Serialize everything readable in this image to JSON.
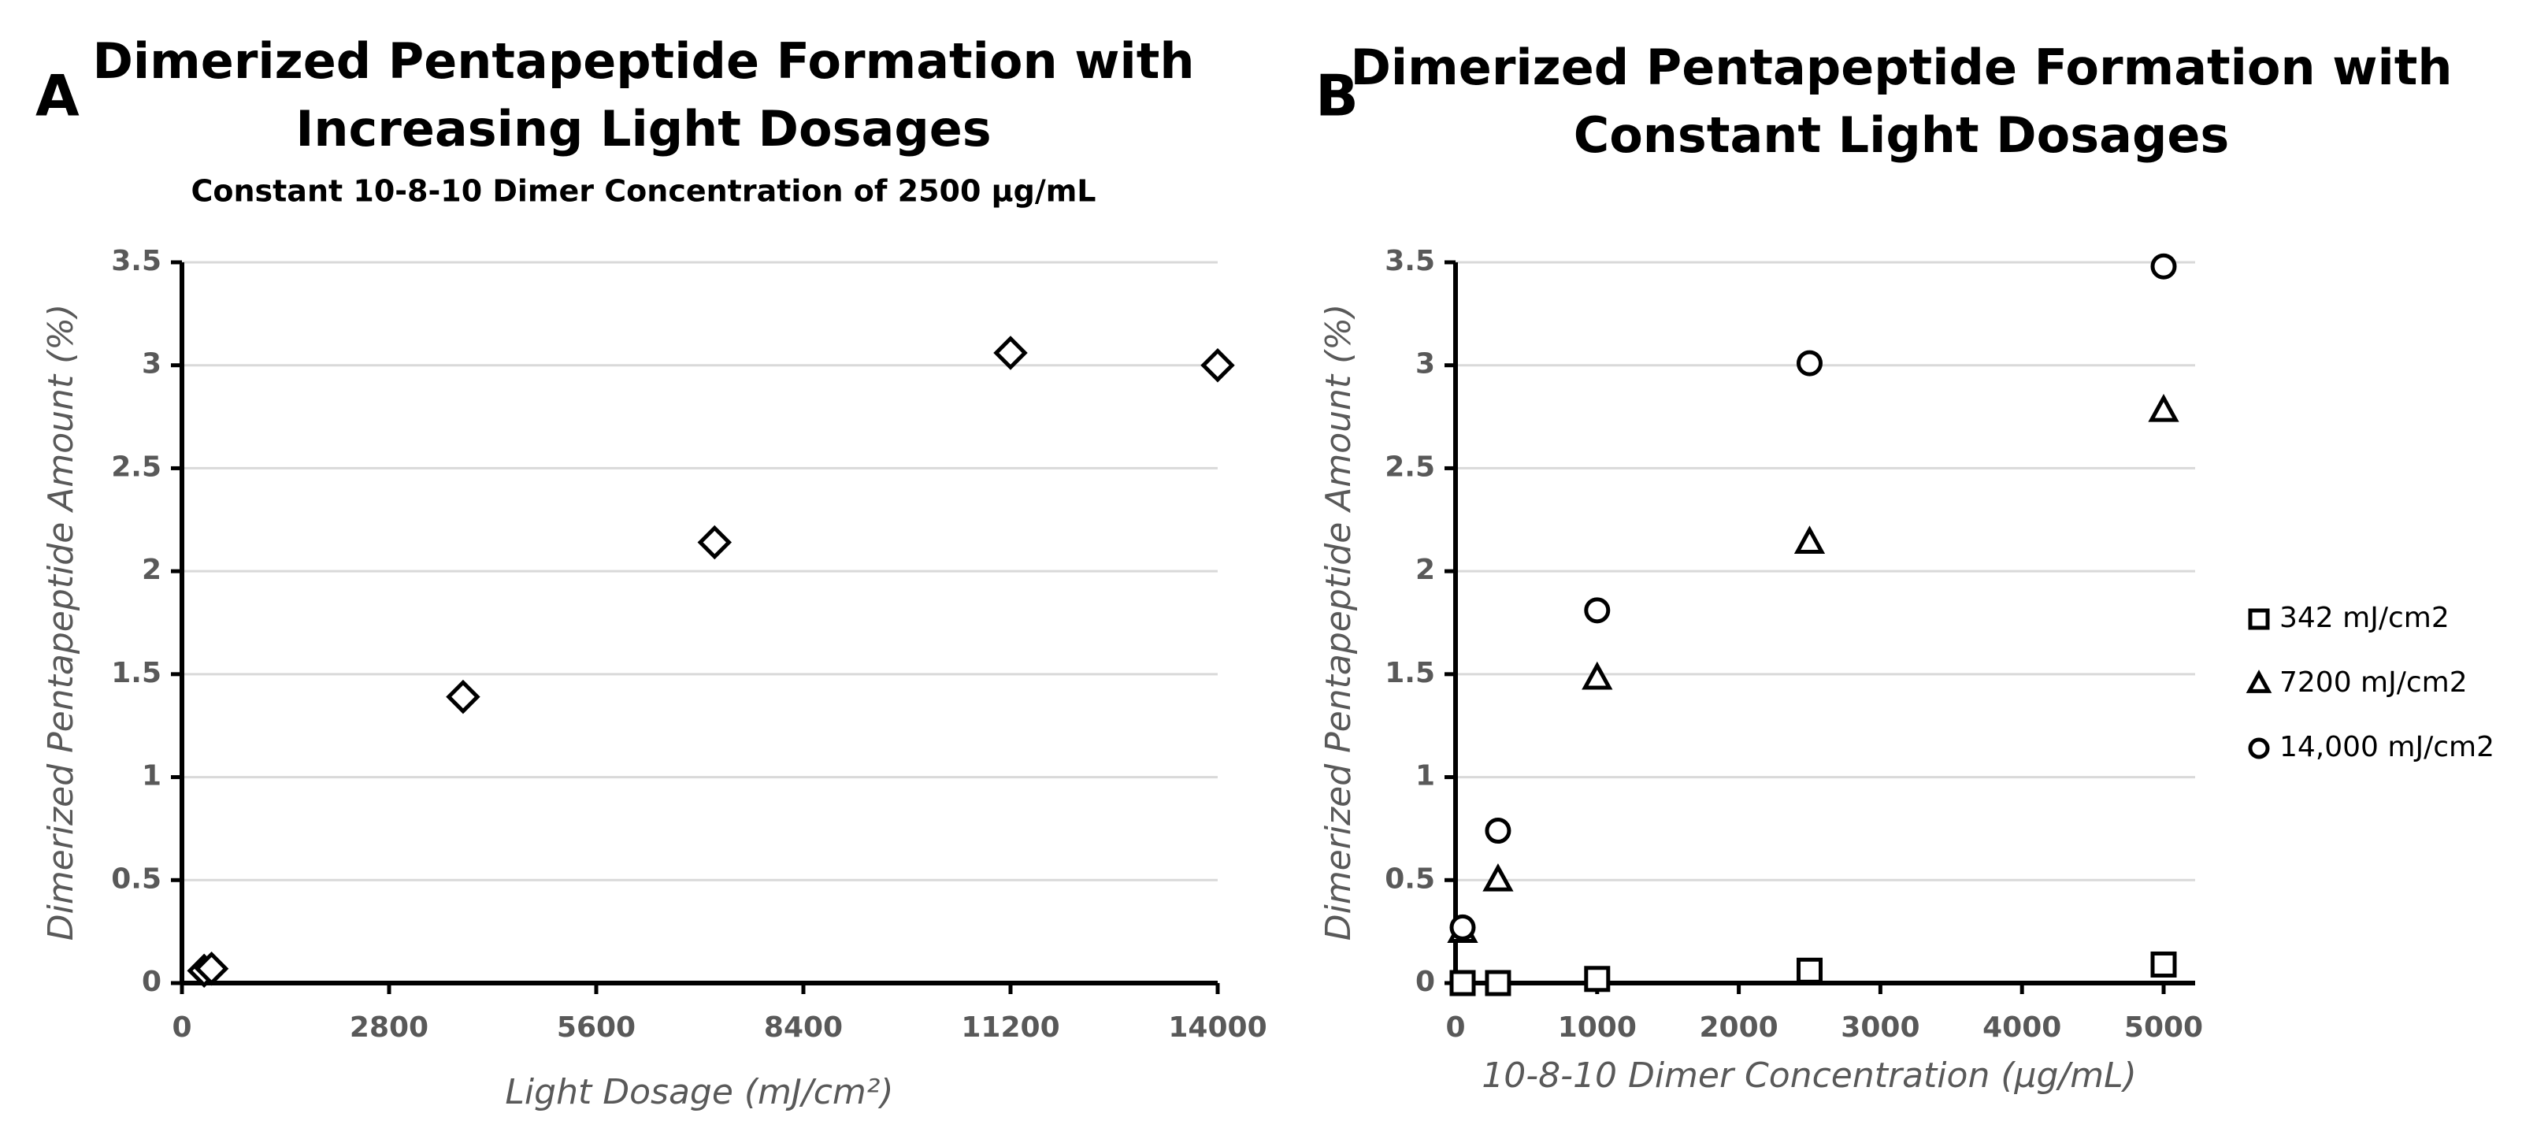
{
  "chart_data": [
    {
      "type": "scatter",
      "panel": "A",
      "title": [
        "Dimerized Pentapeptide Formation with",
        "Increasing Light Dosages"
      ],
      "subtitle": "Constant 10-8-10 Dimer Concentration of 2500 μg/mL",
      "x_label": "Light Dosage (mJ/cm²)",
      "y_label": "Dimerized Pentapeptide Amount (%)",
      "x": [
        300,
        400,
        3800,
        7200,
        11200,
        14000
      ],
      "values": [
        0.06,
        0.07,
        1.39,
        2.14,
        3.06,
        3.0
      ],
      "marker": "diamond",
      "color": "#000000",
      "xlim": [
        0,
        14000
      ],
      "xticks": [
        0,
        2800,
        5600,
        8400,
        11200,
        14000
      ],
      "ylim": [
        0,
        3.5
      ],
      "yticks": [
        0,
        0.5,
        1,
        1.5,
        2,
        2.5,
        3,
        3.5
      ],
      "grid": true
    },
    {
      "type": "scatter",
      "panel": "B",
      "title": [
        "Dimerized Pentapeptide Formation with",
        "Constant Light Dosages"
      ],
      "x_label": "10-8-10 Dimer Concentration (μg/mL)",
      "y_label": "Dimerized Pentapeptide Amount (%)",
      "x": [
        50,
        300,
        1000,
        2500,
        5000
      ],
      "series": [
        {
          "name": "342 mJ/cm2",
          "marker": "square",
          "color": "#000000",
          "values": [
            0,
            0,
            0.02,
            0.06,
            0.09
          ]
        },
        {
          "name": "7200 mJ/cm2",
          "marker": "triangle",
          "color": "#000000",
          "values": [
            0.25,
            0.5,
            1.48,
            2.14,
            2.78
          ]
        },
        {
          "name": "14,000 mJ/cm2",
          "marker": "circle",
          "color": "#000000",
          "values": [
            0.27,
            0.74,
            1.81,
            3.01,
            3.48
          ]
        }
      ],
      "xlim": [
        0,
        5000
      ],
      "xticks": [
        0,
        1000,
        2000,
        3000,
        4000,
        5000
      ],
      "ylim": [
        0,
        3.5
      ],
      "yticks": [
        0,
        0.5,
        1,
        1.5,
        2,
        2.5,
        3,
        3.5
      ],
      "grid": true,
      "legend": "right"
    }
  ]
}
